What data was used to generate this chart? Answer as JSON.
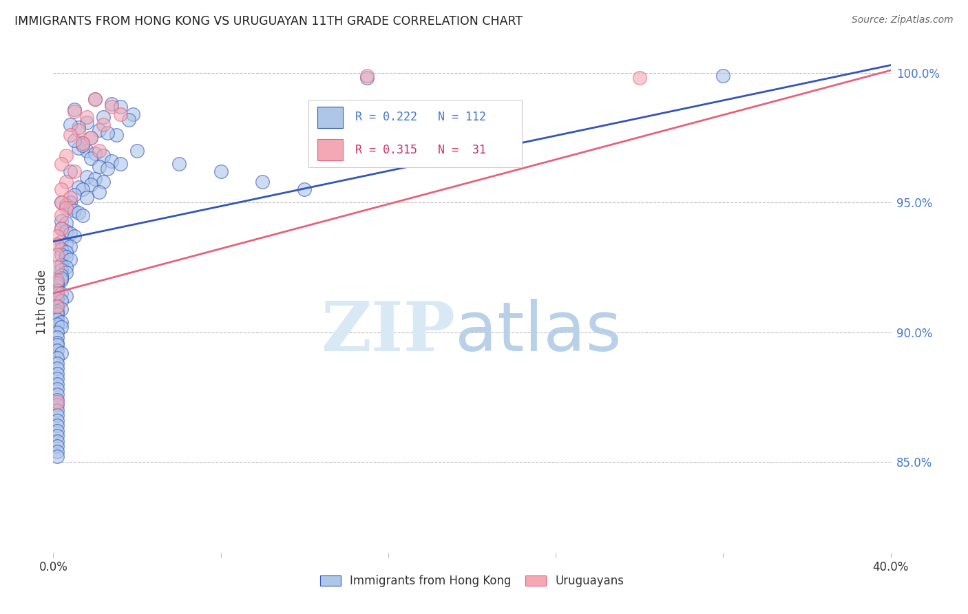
{
  "title": "IMMIGRANTS FROM HONG KONG VS URUGUAYAN 11TH GRADE CORRELATION CHART",
  "source": "Source: ZipAtlas.com",
  "ylabel": "11th Grade",
  "ylabel_right_ticks": [
    "100.0%",
    "95.0%",
    "90.0%",
    "85.0%"
  ],
  "ylabel_right_vals": [
    1.0,
    0.95,
    0.9,
    0.85
  ],
  "xmin": 0.0,
  "xmax": 0.4,
  "ymin": 0.815,
  "ymax": 1.008,
  "legend_blue_R": "0.222",
  "legend_blue_N": "112",
  "legend_pink_R": "0.315",
  "legend_pink_N": " 31",
  "legend_blue_label": "Immigrants from Hong Kong",
  "legend_pink_label": "Uruguayans",
  "blue_color": "#AEC6E8",
  "pink_color": "#F4A7B4",
  "line_blue": "#3355BB",
  "line_pink": "#E8607A",
  "blue_scatter_x": [
    0.02,
    0.028,
    0.032,
    0.038,
    0.01,
    0.024,
    0.036,
    0.016,
    0.012,
    0.022,
    0.03,
    0.026,
    0.018,
    0.014,
    0.008,
    0.016,
    0.02,
    0.024,
    0.012,
    0.028,
    0.032,
    0.018,
    0.014,
    0.022,
    0.01,
    0.026,
    0.008,
    0.016,
    0.02,
    0.024,
    0.012,
    0.018,
    0.014,
    0.022,
    0.01,
    0.016,
    0.008,
    0.004,
    0.006,
    0.008,
    0.01,
    0.012,
    0.014,
    0.004,
    0.006,
    0.004,
    0.006,
    0.008,
    0.01,
    0.004,
    0.006,
    0.008,
    0.004,
    0.006,
    0.004,
    0.006,
    0.008,
    0.004,
    0.006,
    0.004,
    0.006,
    0.004,
    0.004,
    0.004,
    0.002,
    0.002,
    0.04,
    0.06,
    0.08,
    0.1,
    0.12,
    0.002,
    0.004,
    0.006,
    0.002,
    0.004,
    0.002,
    0.004,
    0.002,
    0.002,
    0.002,
    0.004,
    0.002,
    0.004,
    0.002,
    0.002,
    0.002,
    0.002,
    0.32,
    0.15,
    0.002,
    0.004,
    0.002,
    0.002,
    0.002,
    0.002,
    0.002,
    0.002,
    0.002,
    0.002,
    0.002,
    0.002,
    0.002,
    0.002,
    0.002,
    0.002,
    0.002,
    0.002,
    0.002,
    0.002,
    0.002,
    0.002
  ],
  "blue_scatter_y": [
    0.99,
    0.988,
    0.987,
    0.984,
    0.986,
    0.983,
    0.982,
    0.981,
    0.979,
    0.978,
    0.976,
    0.977,
    0.975,
    0.973,
    0.98,
    0.97,
    0.969,
    0.968,
    0.971,
    0.966,
    0.965,
    0.967,
    0.972,
    0.964,
    0.974,
    0.963,
    0.962,
    0.96,
    0.959,
    0.958,
    0.956,
    0.957,
    0.955,
    0.954,
    0.953,
    0.952,
    0.95,
    0.95,
    0.949,
    0.948,
    0.947,
    0.946,
    0.945,
    0.943,
    0.942,
    0.94,
    0.939,
    0.938,
    0.937,
    0.935,
    0.934,
    0.933,
    0.932,
    0.931,
    0.93,
    0.929,
    0.928,
    0.926,
    0.925,
    0.924,
    0.923,
    0.922,
    0.92,
    0.921,
    0.918,
    0.919,
    0.97,
    0.965,
    0.962,
    0.958,
    0.955,
    0.916,
    0.915,
    0.914,
    0.913,
    0.912,
    0.91,
    0.909,
    0.908,
    0.907,
    0.905,
    0.904,
    0.903,
    0.902,
    0.9,
    0.898,
    0.896,
    0.895,
    0.999,
    0.998,
    0.893,
    0.892,
    0.89,
    0.888,
    0.886,
    0.884,
    0.882,
    0.88,
    0.878,
    0.876,
    0.874,
    0.872,
    0.87,
    0.868,
    0.866,
    0.864,
    0.862,
    0.86,
    0.858,
    0.856,
    0.854,
    0.852
  ],
  "pink_scatter_x": [
    0.02,
    0.028,
    0.01,
    0.032,
    0.016,
    0.024,
    0.012,
    0.008,
    0.018,
    0.014,
    0.022,
    0.006,
    0.004,
    0.01,
    0.006,
    0.004,
    0.008,
    0.004,
    0.006,
    0.004,
    0.004,
    0.002,
    0.002,
    0.002,
    0.002,
    0.002,
    0.002,
    0.002,
    0.002,
    0.15,
    0.28
  ],
  "pink_scatter_y": [
    0.99,
    0.987,
    0.985,
    0.984,
    0.983,
    0.98,
    0.978,
    0.976,
    0.975,
    0.973,
    0.97,
    0.968,
    0.965,
    0.962,
    0.958,
    0.955,
    0.952,
    0.95,
    0.948,
    0.945,
    0.94,
    0.937,
    0.934,
    0.93,
    0.925,
    0.92,
    0.915,
    0.91,
    0.873,
    0.999,
    0.998
  ],
  "blue_line_x": [
    0.0,
    0.4
  ],
  "blue_line_y": [
    0.935,
    1.003
  ],
  "pink_line_x": [
    0.0,
    0.4
  ],
  "pink_line_y": [
    0.915,
    1.001
  ]
}
